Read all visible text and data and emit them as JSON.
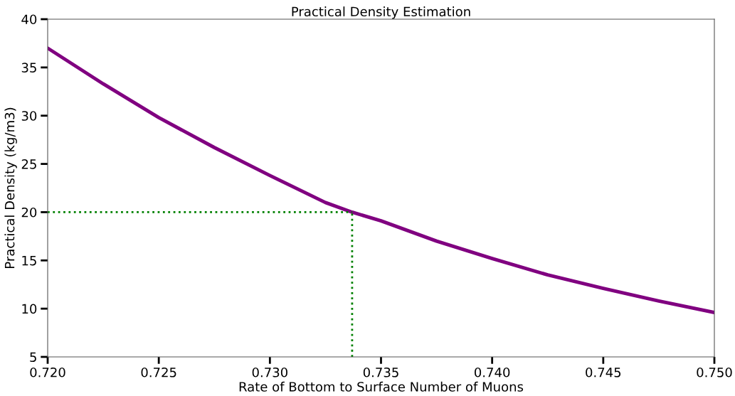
{
  "chart_data": {
    "type": "line",
    "title": "Practical Density Estimation",
    "xlabel": "Rate of Bottom to Surface Number of Muons",
    "ylabel": "Practical Density (kg/m3)",
    "series": [
      {
        "color": "#800080",
        "x": [
          0.72,
          0.7225,
          0.725,
          0.7275,
          0.73,
          0.7325,
          0.7337,
          0.735,
          0.7375,
          0.74,
          0.7425,
          0.745,
          0.7475,
          0.75
        ],
        "values": [
          37.0,
          33.3,
          29.8,
          26.7,
          23.8,
          21.0,
          20.0,
          19.1,
          17.0,
          15.2,
          13.5,
          12.1,
          10.8,
          9.6
        ]
      }
    ],
    "ref_lines": [
      {
        "axis": "y",
        "value": 20,
        "color": "#008000",
        "line_style": "dotted"
      },
      {
        "axis": "x",
        "value": 0.7337,
        "color": "#008000",
        "line_style": "dotted"
      }
    ],
    "xlim": [
      0.72,
      0.75
    ],
    "xticks": [
      {
        "value": 0.72,
        "label": "0.720"
      },
      {
        "value": 0.725,
        "label": "0.725"
      },
      {
        "value": 0.73,
        "label": "0.730"
      },
      {
        "value": 0.735,
        "label": "0.735"
      },
      {
        "value": 0.74,
        "label": "0.740"
      },
      {
        "value": 0.745,
        "label": "0.745"
      },
      {
        "value": 0.75,
        "label": "0.750"
      }
    ],
    "ylim": [
      5,
      40
    ],
    "yticks": [
      5,
      10,
      15,
      20,
      25,
      30,
      35,
      40
    ],
    "marker": "none",
    "line_style": "solid"
  }
}
